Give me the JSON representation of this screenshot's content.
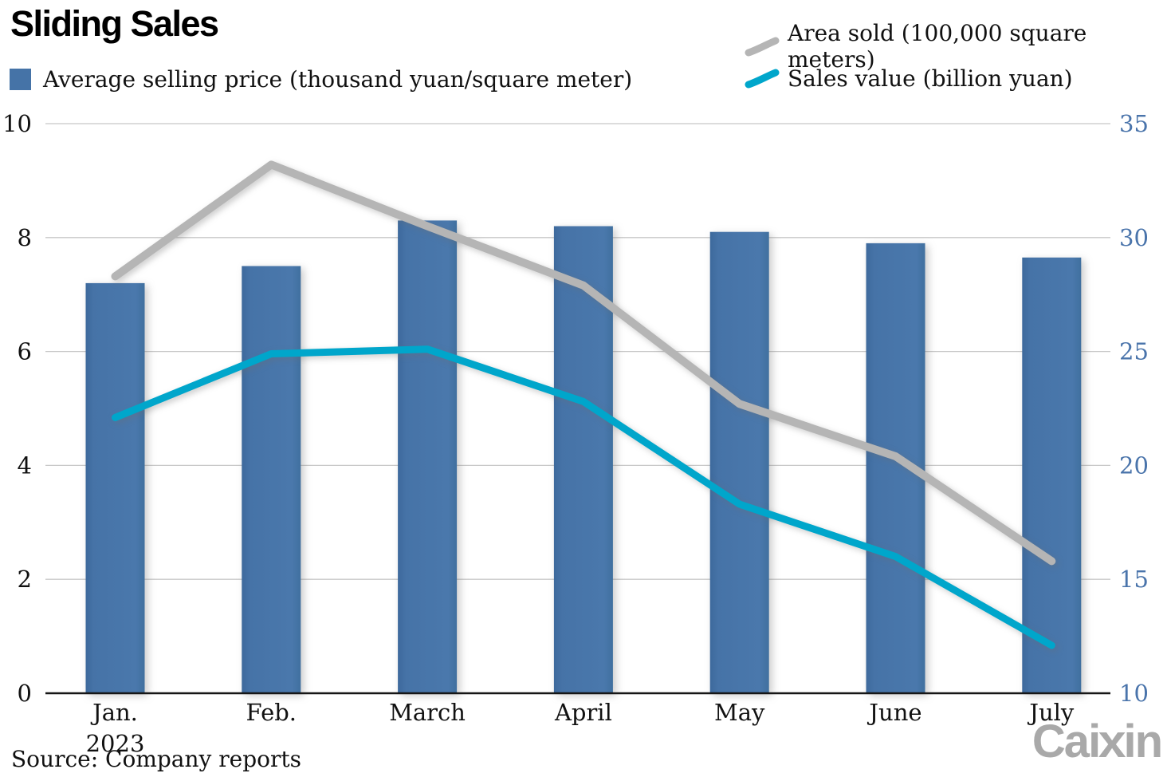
{
  "header": {
    "title": "Sliding Sales"
  },
  "legend": {
    "bar": {
      "label": "Average selling price (thousand yuan/square meter)",
      "color": "#4573a7"
    },
    "area_sold": {
      "label": "Area sold (100,000 square meters)",
      "color": "#b5b5b5"
    },
    "sales_value": {
      "label": "Sales value (billion yuan)",
      "color": "#00a6cb"
    }
  },
  "footer": {
    "source": "Source: Company reports",
    "logo_pre": "Cai",
    "logo_x": "x",
    "logo_post": "in"
  },
  "chart_data": {
    "type": "bar+line combo",
    "title": "Sliding Sales",
    "source": "Source: Company reports",
    "categories": [
      "Jan.",
      "Feb.",
      "March",
      "April",
      "May",
      "June",
      "July"
    ],
    "year_label": {
      "index": 0,
      "text": "2023"
    },
    "left_axis": {
      "min": 0,
      "max": 10,
      "ticks": [
        0,
        2,
        4,
        6,
        8,
        10
      ],
      "tick_color": "#111111"
    },
    "right_axis": {
      "min": 10,
      "max": 35,
      "ticks": [
        10,
        15,
        20,
        25,
        30,
        35
      ],
      "tick_color": "#4a74ab"
    },
    "grid": true,
    "legend_position": "top",
    "series": [
      {
        "name": "Average selling price (thousand yuan/square meter)",
        "type": "bar",
        "axis": "left",
        "color": "#4573a7",
        "values": [
          7.2,
          7.5,
          8.3,
          8.2,
          8.1,
          7.9,
          7.65
        ]
      },
      {
        "name": "Area sold (100,000 square meters)",
        "type": "line",
        "axis": "right",
        "color": "#b5b5b5",
        "values": [
          28.3,
          33.2,
          30.5,
          27.9,
          22.7,
          20.4,
          15.8
        ]
      },
      {
        "name": "Sales value (billion yuan)",
        "type": "line",
        "axis": "right",
        "color": "#00a6cb",
        "values": [
          22.1,
          24.9,
          25.1,
          22.8,
          18.3,
          16.0,
          12.1
        ]
      }
    ]
  }
}
